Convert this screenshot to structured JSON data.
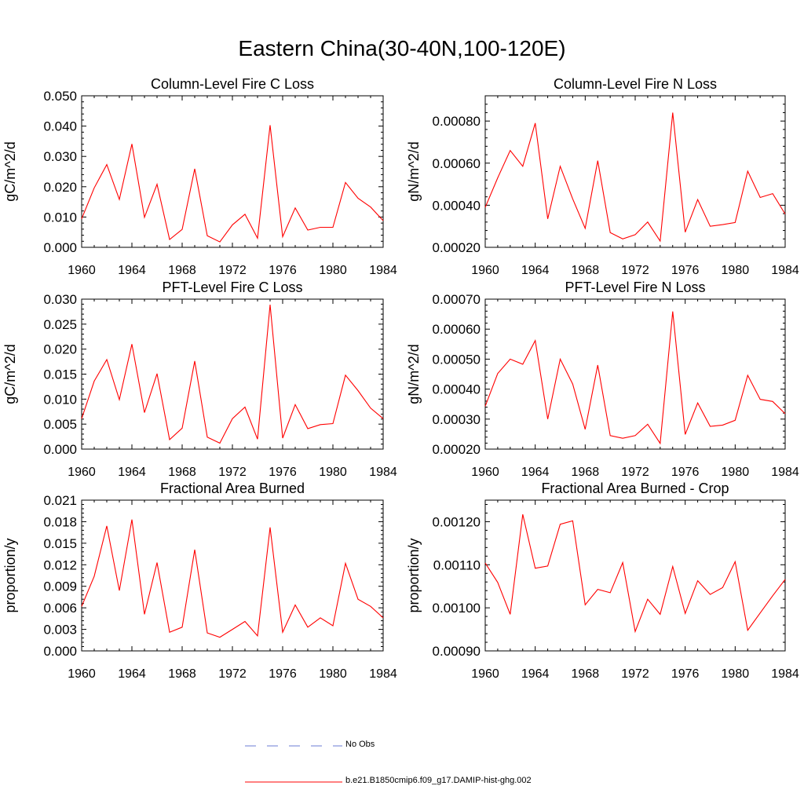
{
  "title": "Eastern China(30-40N,100-120E)",
  "legend": {
    "items": [
      {
        "label": "No Obs",
        "color": "#6b7bd6",
        "style": "dashed"
      },
      {
        "label": "b.e21.B1850cmip6.f09_g17.DAMIP-hist-ghg.002",
        "color": "#ff0000",
        "style": "solid"
      }
    ]
  },
  "colors": {
    "series": "#ff0000",
    "axes": "#000000"
  },
  "chart_data": [
    {
      "type": "line",
      "title": "Column-Level Fire C Loss",
      "ylabel": "gC/m^2/d",
      "xlim": [
        1960,
        1984
      ],
      "ylim": [
        0,
        0.05
      ],
      "xticks": [
        "1960",
        "1964",
        "1968",
        "1972",
        "1976",
        "1980",
        "1984"
      ],
      "yticks": [
        "0.000",
        "0.010",
        "0.020",
        "0.030",
        "0.040",
        "0.050"
      ],
      "x": [
        1960,
        1961,
        1962,
        1963,
        1964,
        1965,
        1966,
        1967,
        1968,
        1969,
        1970,
        1971,
        1972,
        1973,
        1974,
        1975,
        1976,
        1977,
        1978,
        1979,
        1980,
        1981,
        1982,
        1983,
        1984
      ],
      "series": [
        {
          "values": [
            0.0094,
            0.0196,
            0.0273,
            0.0158,
            0.0341,
            0.0099,
            0.0208,
            0.0026,
            0.0059,
            0.0259,
            0.0038,
            0.0018,
            0.0074,
            0.0109,
            0.003,
            0.0403,
            0.0035,
            0.013,
            0.0057,
            0.0066,
            0.0066,
            0.0214,
            0.0162,
            0.0133,
            0.0088
          ]
        }
      ]
    },
    {
      "type": "line",
      "title": "Column-Level Fire N Loss",
      "ylabel": "gN/m^2/d",
      "xlim": [
        1960,
        1984
      ],
      "ylim": [
        0.0002,
        0.00092
      ],
      "xticks": [
        "1960",
        "1964",
        "1968",
        "1972",
        "1976",
        "1980",
        "1984"
      ],
      "yticks": [
        "0.00020",
        "0.00040",
        "0.00060",
        "0.00080"
      ],
      "x": [
        1960,
        1961,
        1962,
        1963,
        1964,
        1965,
        1966,
        1967,
        1968,
        1969,
        1970,
        1971,
        1972,
        1973,
        1974,
        1975,
        1976,
        1977,
        1978,
        1979,
        1980,
        1981,
        1982,
        1983,
        1984
      ],
      "series": [
        {
          "values": [
            0.00039,
            0.00053,
            0.00066,
            0.000585,
            0.00079,
            0.000335,
            0.000585,
            0.00043,
            0.00029,
            0.000612,
            0.00027,
            0.00024,
            0.00026,
            0.00032,
            0.00023,
            0.00084,
            0.000272,
            0.000427,
            0.0003,
            0.000308,
            0.000318,
            0.000562,
            0.000437,
            0.000455,
            0.000358
          ]
        }
      ]
    },
    {
      "type": "line",
      "title": "PFT-Level Fire C Loss",
      "ylabel": "gC/m^2/d",
      "xlim": [
        1960,
        1984
      ],
      "ylim": [
        0,
        0.03
      ],
      "xticks": [
        "1960",
        "1964",
        "1968",
        "1972",
        "1976",
        "1980",
        "1984"
      ],
      "yticks": [
        "0.000",
        "0.005",
        "0.010",
        "0.015",
        "0.020",
        "0.025",
        "0.030"
      ],
      "x": [
        1960,
        1961,
        1962,
        1963,
        1964,
        1965,
        1966,
        1967,
        1968,
        1969,
        1970,
        1971,
        1972,
        1973,
        1974,
        1975,
        1976,
        1977,
        1978,
        1979,
        1980,
        1981,
        1982,
        1983,
        1984
      ],
      "series": [
        {
          "values": [
            0.0061,
            0.0136,
            0.0179,
            0.0099,
            0.021,
            0.0073,
            0.0151,
            0.0019,
            0.0042,
            0.0176,
            0.0024,
            0.0012,
            0.0061,
            0.0084,
            0.002,
            0.0289,
            0.0022,
            0.0089,
            0.0041,
            0.0049,
            0.0051,
            0.0148,
            0.0117,
            0.0082,
            0.0061
          ]
        }
      ]
    },
    {
      "type": "line",
      "title": "PFT-Level Fire N Loss",
      "ylabel": "gN/m^2/d",
      "xlim": [
        1960,
        1984
      ],
      "ylim": [
        0.0002,
        0.0007
      ],
      "xticks": [
        "1960",
        "1964",
        "1968",
        "1972",
        "1976",
        "1980",
        "1984"
      ],
      "yticks": [
        "0.00020",
        "0.00030",
        "0.00040",
        "0.00050",
        "0.00060",
        "0.00070"
      ],
      "x": [
        1960,
        1961,
        1962,
        1963,
        1964,
        1965,
        1966,
        1967,
        1968,
        1969,
        1970,
        1971,
        1972,
        1973,
        1974,
        1975,
        1976,
        1977,
        1978,
        1979,
        1980,
        1981,
        1982,
        1983,
        1984
      ],
      "series": [
        {
          "values": [
            0.000343,
            0.000452,
            0.0005,
            0.000483,
            0.000562,
            0.0003,
            0.0005,
            0.000417,
            0.000266,
            0.00048,
            0.000245,
            0.000236,
            0.000245,
            0.000283,
            0.000219,
            0.000659,
            0.000249,
            0.000354,
            0.000276,
            0.00028,
            0.000296,
            0.000446,
            0.000366,
            0.000359,
            0.000318
          ]
        }
      ]
    },
    {
      "type": "line",
      "title": "Fractional Area Burned",
      "ylabel": "proportion/y",
      "xlim": [
        1960,
        1984
      ],
      "ylim": [
        0,
        0.021
      ],
      "xticks": [
        "1960",
        "1964",
        "1968",
        "1972",
        "1976",
        "1980",
        "1984"
      ],
      "yticks": [
        "0.000",
        "0.003",
        "0.006",
        "0.009",
        "0.012",
        "0.015",
        "0.018",
        "0.021"
      ],
      "x": [
        1960,
        1961,
        1962,
        1963,
        1964,
        1965,
        1966,
        1967,
        1968,
        1969,
        1970,
        1971,
        1972,
        1973,
        1974,
        1975,
        1976,
        1977,
        1978,
        1979,
        1980,
        1981,
        1982,
        1983,
        1984
      ],
      "series": [
        {
          "values": [
            0.0062,
            0.0104,
            0.0174,
            0.0084,
            0.0183,
            0.0051,
            0.0123,
            0.0026,
            0.0033,
            0.0141,
            0.0025,
            0.0019,
            0.003,
            0.0041,
            0.0021,
            0.0172,
            0.0026,
            0.0064,
            0.0033,
            0.0046,
            0.0035,
            0.0122,
            0.0072,
            0.0062,
            0.0046
          ]
        }
      ]
    },
    {
      "type": "line",
      "title": "Fractional Area Burned - Crop",
      "ylabel": "proportion/y",
      "xlim": [
        1960,
        1984
      ],
      "ylim": [
        0.0009,
        0.00125
      ],
      "xticks": [
        "1960",
        "1964",
        "1968",
        "1972",
        "1976",
        "1980",
        "1984"
      ],
      "yticks": [
        "0.00090",
        "0.00100",
        "0.00110",
        "0.00120"
      ],
      "x": [
        1960,
        1961,
        1962,
        1963,
        1964,
        1965,
        1966,
        1967,
        1968,
        1969,
        1970,
        1971,
        1972,
        1973,
        1974,
        1975,
        1976,
        1977,
        1978,
        1979,
        1980,
        1981,
        1982,
        1983,
        1984
      ],
      "series": [
        {
          "values": [
            0.001104,
            0.001059,
            0.000985,
            0.001217,
            0.001092,
            0.001097,
            0.001194,
            0.001202,
            0.001007,
            0.001043,
            0.001035,
            0.001105,
            0.000945,
            0.00102,
            0.000985,
            0.001096,
            0.000987,
            0.001063,
            0.001031,
            0.001047,
            0.001107,
            0.000948,
            0.000988,
            0.001028,
            0.001066
          ]
        }
      ]
    }
  ]
}
